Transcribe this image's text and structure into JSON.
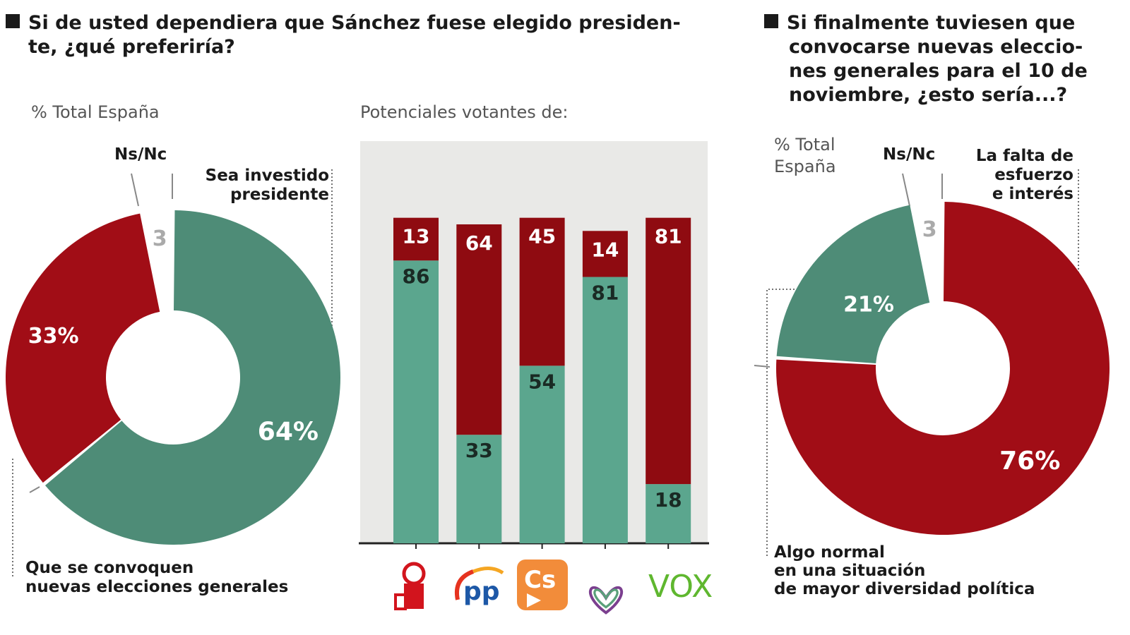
{
  "left": {
    "title_line1": "Si de usted dependiera que Sánchez fuese elegido presiden-",
    "title_line2": "te, ¿qué preferiría?",
    "subtitle": "% Total España",
    "nsnc_label": "Ns/Nc",
    "label_a_line1": "Sea investido",
    "label_a_line2": "presidente",
    "label_b_line1": "Que se convoquen",
    "label_b_line2": "nuevas elecciones generales",
    "bars_subtitle": "Potenciales votantes de:"
  },
  "right": {
    "title_lines": [
      "Si finalmente tuviesen que",
      "convocarse nuevas eleccio-",
      "nes generales para el 10 de",
      "noviembre, ¿esto sería...?"
    ],
    "subtitle_line1": "% Total",
    "subtitle_line2": "España",
    "nsnc_label": "Ns/Nc",
    "label_a_lines": [
      "La falta de",
      "esfuerzo",
      "e interés"
    ],
    "label_b_lines": [
      "Algo normal",
      "en una situación",
      "de mayor diversidad política"
    ]
  },
  "colors": {
    "green_donut": "#4e8c77",
    "green_bar": "#5ba68e",
    "red": "#a10d16",
    "red_bar": "#8f0b11",
    "panel": "#e9e9e7"
  },
  "chart_data": [
    {
      "type": "pie",
      "subtitle": "% Total España",
      "slices": [
        {
          "label": "Sea investido presidente",
          "value": 64,
          "display": "64%",
          "color": "#4e8c77"
        },
        {
          "label": "Que se convoquen nuevas elecciones generales",
          "value": 33,
          "display": "33%",
          "color": "#a10d16"
        },
        {
          "label": "Ns/Nc",
          "value": 3,
          "display": "3",
          "color": "none"
        }
      ]
    },
    {
      "type": "bar",
      "stacked": true,
      "subtitle": "Potenciales votantes de:",
      "categories": [
        "PSOE",
        "PP",
        "Cs",
        "Podemos",
        "VOX"
      ],
      "ylim": [
        0,
        100
      ],
      "series": [
        {
          "values": [
            86,
            33,
            54,
            81,
            18
          ],
          "color": "#5ba68e"
        },
        {
          "values": [
            13,
            64,
            45,
            14,
            81
          ],
          "color": "#8f0b11"
        }
      ]
    },
    {
      "type": "pie",
      "subtitle": "% Total España",
      "slices": [
        {
          "label": "La falta de esfuerzo e interés",
          "value": 76,
          "display": "76%",
          "color": "#a10d16"
        },
        {
          "label": "Algo normal en una situación de mayor diversidad política",
          "value": 21,
          "display": "21%",
          "color": "#4e8c77"
        },
        {
          "label": "Ns/Nc",
          "value": 3,
          "display": "3",
          "color": "none"
        }
      ]
    }
  ]
}
